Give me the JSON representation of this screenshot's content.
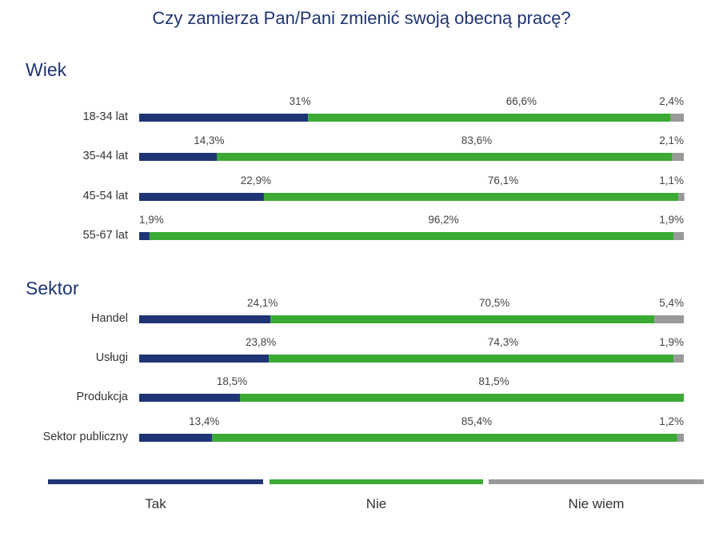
{
  "chart_data": {
    "type": "bar",
    "orientation": "horizontal",
    "stacked": true,
    "title": "Czy zamierza Pan/Pani zmienić swoją obecną pracę?",
    "series": [
      {
        "name": "Tak",
        "color": "#1f3474"
      },
      {
        "name": "Nie",
        "color": "#3aaa35"
      },
      {
        "name": "Nie wiem",
        "color": "#999999"
      }
    ],
    "groups": [
      {
        "name": "Wiek",
        "rows": [
          {
            "category": "18-34 lat",
            "values": [
              31,
              66.6,
              2.4
            ],
            "labels": [
              "31%",
              "66,6%",
              "2,4%"
            ]
          },
          {
            "category": "35-44 lat",
            "values": [
              14.3,
              83.6,
              2.1
            ],
            "labels": [
              "14,3%",
              "83,6%",
              "2,1%"
            ]
          },
          {
            "category": "45-54 lat",
            "values": [
              22.9,
              76.1,
              1.1
            ],
            "labels": [
              "22,9%",
              "76,1%",
              "1,1%"
            ]
          },
          {
            "category": "55-67 lat",
            "values": [
              1.9,
              96.2,
              1.9
            ],
            "labels": [
              "1,9%",
              "96,2%",
              "1,9%"
            ]
          }
        ]
      },
      {
        "name": "Sektor",
        "rows": [
          {
            "category": "Handel",
            "values": [
              24.1,
              70.5,
              5.4
            ],
            "labels": [
              "24,1%",
              "70,5%",
              "5,4%"
            ]
          },
          {
            "category": "Usługi",
            "values": [
              23.8,
              74.3,
              1.9
            ],
            "labels": [
              "23,8%",
              "74,3%",
              "1,9%"
            ]
          },
          {
            "category": "Produkcja",
            "values": [
              18.5,
              81.5,
              0
            ],
            "labels": [
              "18,5%",
              "81,5%",
              ""
            ]
          },
          {
            "category": "Sektor publiczny",
            "values": [
              13.4,
              85.4,
              1.2
            ],
            "labels": [
              "13,4%",
              "85,4%",
              "1,2%"
            ]
          }
        ]
      }
    ],
    "xlim": [
      0,
      100
    ],
    "legend_position": "bottom"
  }
}
